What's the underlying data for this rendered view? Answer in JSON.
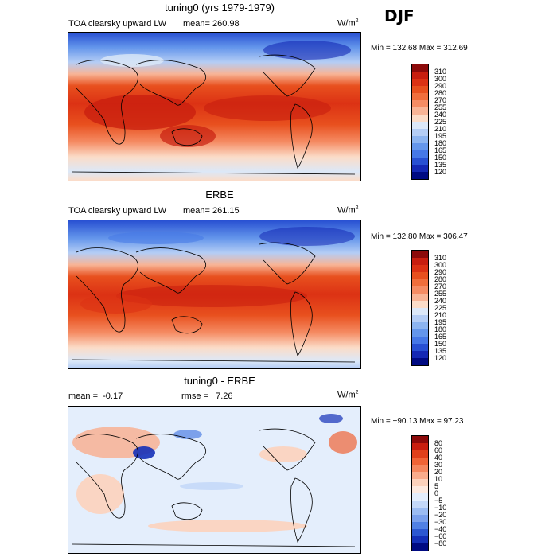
{
  "season": "DJF",
  "panels": [
    {
      "title": "tuning0 (yrs 1979-1979)",
      "field": "TOA clearsky upward LW",
      "mean_label": "mean=",
      "mean": "260.98",
      "units": "W/m",
      "units_exp": "2",
      "minmax": "Min = 132.68 Max = 312.69"
    },
    {
      "title": "ERBE",
      "field": "TOA clearsky upward LW",
      "mean_label": "mean=",
      "mean": "261.15",
      "units": "W/m",
      "units_exp": "2",
      "minmax": "Min = 132.80 Max = 306.47"
    },
    {
      "title": "tuning0 - ERBE",
      "mean_label": "mean =",
      "mean": "-0.17",
      "rmse_label": "rmse =",
      "rmse": "7.26",
      "units": "W/m",
      "units_exp": "2",
      "minmax": "Min = −90.13 Max =  97.23"
    }
  ],
  "chart_data": [
    {
      "type": "heatmap",
      "title": "tuning0 (yrs 1979-1979)",
      "variable": "TOA clearsky upward LW",
      "units": "W/m2",
      "mean": 260.98,
      "min": 132.68,
      "max": 312.69,
      "levels": [
        "310",
        "300",
        "290",
        "280",
        "270",
        "255",
        "240",
        "225",
        "210",
        "195",
        "180",
        "165",
        "150",
        "135",
        "120"
      ],
      "colors": [
        "#8c0a0a",
        "#c81e0f",
        "#dc3214",
        "#e8501e",
        "#f06e3c",
        "#f58c64",
        "#f8b496",
        "#fbdcc8",
        "#dce8f8",
        "#b4cdf5",
        "#8cb4f0",
        "#6496eb",
        "#4678e6",
        "#2850d2",
        "#1428b4",
        "#000a82"
      ]
    },
    {
      "type": "heatmap",
      "title": "ERBE",
      "variable": "TOA clearsky upward LW",
      "units": "W/m2",
      "mean": 261.15,
      "min": 132.8,
      "max": 306.47,
      "levels": [
        "310",
        "300",
        "290",
        "280",
        "270",
        "255",
        "240",
        "225",
        "210",
        "195",
        "180",
        "165",
        "150",
        "135",
        "120"
      ],
      "colors": [
        "#8c0a0a",
        "#c81e0f",
        "#dc3214",
        "#e8501e",
        "#f06e3c",
        "#f58c64",
        "#f8b496",
        "#fbdcc8",
        "#dce8f8",
        "#b4cdf5",
        "#8cb4f0",
        "#6496eb",
        "#4678e6",
        "#2850d2",
        "#1428b4",
        "#000a82"
      ]
    },
    {
      "type": "heatmap",
      "title": "tuning0 - ERBE",
      "units": "W/m2",
      "mean": -0.17,
      "rmse": 7.26,
      "min": -90.13,
      "max": 97.23,
      "levels": [
        "80",
        "60",
        "40",
        "30",
        "20",
        "10",
        "5",
        "0",
        "−5",
        "−10",
        "−20",
        "−30",
        "−40",
        "−60",
        "−80"
      ],
      "colors": [
        "#8c0a0a",
        "#c81e0f",
        "#e0401a",
        "#f06436",
        "#f5875e",
        "#f9ac8c",
        "#fcd2bc",
        "#fdeae0",
        "#e4eefc",
        "#c4d8f8",
        "#9cbcf2",
        "#7aa0ec",
        "#5080e4",
        "#2c58d2",
        "#1430b8",
        "#000a82"
      ]
    }
  ]
}
